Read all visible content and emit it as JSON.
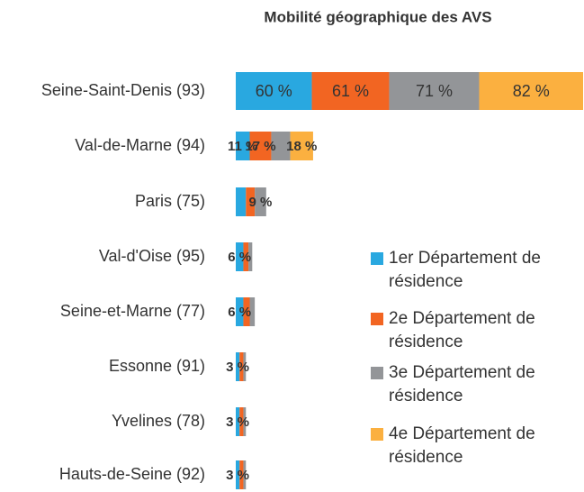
{
  "chart_data": {
    "type": "stacked-bar-horizontal",
    "title": "Mobilité géographique des AVS",
    "categories": [
      "Seine-Saint-Denis (93)",
      "Val-de-Marne (94)",
      "Paris (75)",
      "Val-d'Oise (95)",
      "Seine-et-Marne (77)",
      "Essonne (91)",
      "Yvelines (78)",
      "Hauts-de-Seine (92)"
    ],
    "series": [
      {
        "name": "1er Département de résidence",
        "color": "#29a8e0",
        "values": [
          60,
          11,
          8,
          6,
          6,
          3,
          3,
          3
        ],
        "value_labels": [
          "60 %",
          "11 %",
          null,
          "6 %",
          "6 %",
          "3 %",
          "3 %",
          "3 %"
        ]
      },
      {
        "name": "2e Département de résidence",
        "color": "#f26522",
        "values": [
          61,
          17,
          7,
          4,
          5,
          3,
          3,
          3
        ],
        "value_labels": [
          "61 %",
          "17 %",
          null,
          null,
          null,
          null,
          null,
          null
        ]
      },
      {
        "name": "3e Département de résidence",
        "color": "#939598",
        "values": [
          71,
          15,
          9,
          3,
          4,
          2,
          2,
          2
        ],
        "value_labels": [
          "71 %",
          null,
          "9 %",
          null,
          null,
          null,
          null,
          null
        ]
      },
      {
        "name": "4e Département de résidence",
        "color": "#fbb040",
        "values": [
          82,
          18,
          null,
          null,
          null,
          null,
          null,
          null
        ],
        "value_labels": [
          "82 %",
          "18 %",
          null,
          null,
          null,
          null,
          null,
          null
        ]
      }
    ],
    "legend": "right"
  }
}
